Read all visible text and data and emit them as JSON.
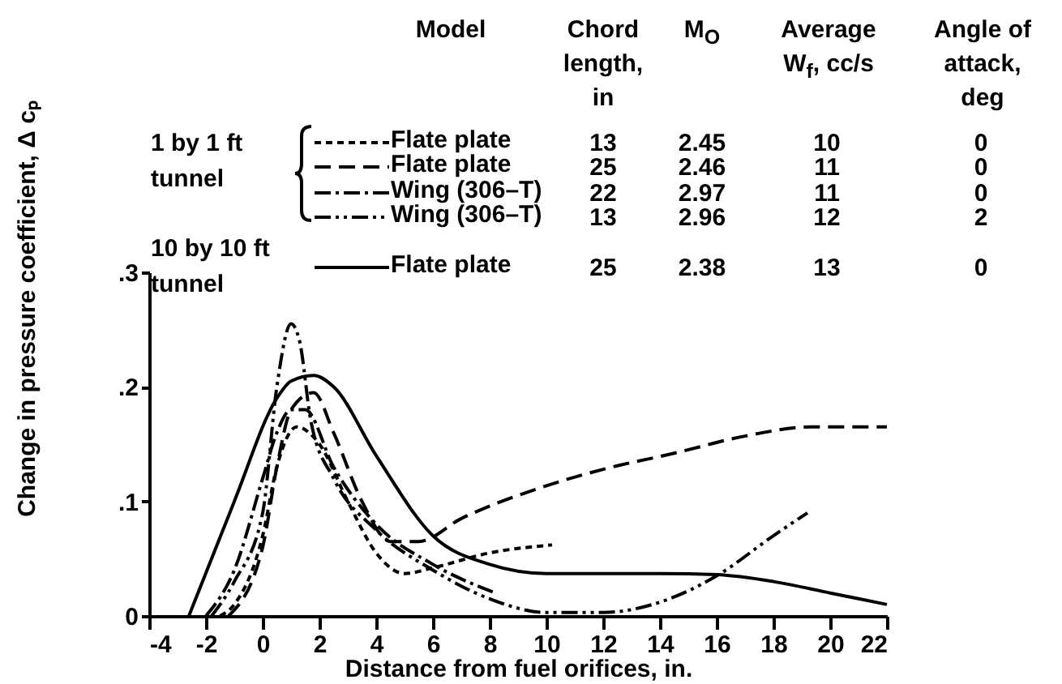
{
  "chart_data": {
    "type": "line",
    "xlabel": "Distance from fuel orifices, in.",
    "ylabel": "Change in pressure coefficient, Δ cₚ",
    "xlim": [
      -4,
      22
    ],
    "xticks": [
      -4,
      -2,
      0,
      2,
      4,
      6,
      8,
      10,
      12,
      14,
      16,
      18,
      20,
      22
    ],
    "ylim": [
      0,
      0.3
    ],
    "yticks": [
      0,
      {
        "value": 0.1,
        "label": ".1"
      },
      {
        "value": 0.2,
        "label": ".2"
      },
      {
        "value": 0.3,
        "label": ".3"
      }
    ],
    "grid": false,
    "legend": "top",
    "marker": "none",
    "series": [
      {
        "name": "Flate plate",
        "color": "#000000",
        "line_style": "dotted",
        "x": [
          -1.5,
          -1,
          0,
          0.5,
          1.2,
          2,
          3,
          4,
          5,
          6,
          8,
          10.2
        ],
        "values": [
          0,
          0.01,
          0.07,
          0.13,
          0.165,
          0.15,
          0.1,
          0.055,
          0.037,
          0.042,
          0.055,
          0.062
        ]
      },
      {
        "name": "Flate plate",
        "color": "#000000",
        "line_style": "dashed",
        "x": [
          -1.2,
          0,
          0.5,
          1,
          1.8,
          2.5,
          3.5,
          4.5,
          5.5,
          7,
          9.8,
          12,
          14.5,
          17,
          19.3,
          22
        ],
        "values": [
          0,
          0.06,
          0.13,
          0.18,
          0.195,
          0.16,
          0.1,
          0.065,
          0.065,
          0.085,
          0.112,
          0.128,
          0.142,
          0.157,
          0.165,
          0.165
        ]
      },
      {
        "name": "Wing (306–T)",
        "color": "#000000",
        "line_style": "dashdot",
        "x": [
          -2,
          -1,
          0,
          0.5,
          1,
          1.5,
          2.5,
          4,
          6,
          8.2
        ],
        "values": [
          0,
          0.04,
          0.12,
          0.16,
          0.18,
          0.18,
          0.13,
          0.08,
          0.045,
          0.02
        ]
      },
      {
        "name": "Wing (306–T)",
        "color": "#000000",
        "line_style": "dashdotdot",
        "x": [
          -1.8,
          -1,
          0,
          0.5,
          1,
          1.3,
          1.7,
          2.5,
          4,
          6,
          8,
          10,
          12,
          14,
          16,
          18,
          19.2
        ],
        "values": [
          0,
          0.03,
          0.09,
          0.2,
          0.255,
          0.24,
          0.17,
          0.12,
          0.075,
          0.04,
          0.015,
          0.003,
          0.003,
          0.012,
          0.035,
          0.07,
          0.09
        ]
      },
      {
        "name": "Flate plate",
        "color": "#000000",
        "line_style": "solid",
        "x": [
          -2.6,
          -1,
          0.5,
          1,
          1.8,
          2.5,
          4,
          6,
          8,
          10,
          14,
          16,
          18,
          20,
          22
        ],
        "values": [
          0,
          0.1,
          0.19,
          0.205,
          0.21,
          0.2,
          0.14,
          0.07,
          0.045,
          0.037,
          0.037,
          0.036,
          0.03,
          0.02,
          0.01
        ]
      }
    ],
    "annotations": [
      "Model",
      "Chord length, in",
      "M$_{O}$",
      "Average W$_{f}$, cc/s",
      "Angle of attack, deg",
      "1 by 1 ft tunnel",
      "13",
      "2.45",
      "10",
      "0",
      "25",
      "2.46",
      "11",
      "0",
      "22",
      "2.97",
      "11",
      "0",
      "13",
      "2.96",
      "12",
      "2",
      "10 by 10 ft tunnel",
      "25",
      "2.38",
      "13",
      "0"
    ]
  }
}
